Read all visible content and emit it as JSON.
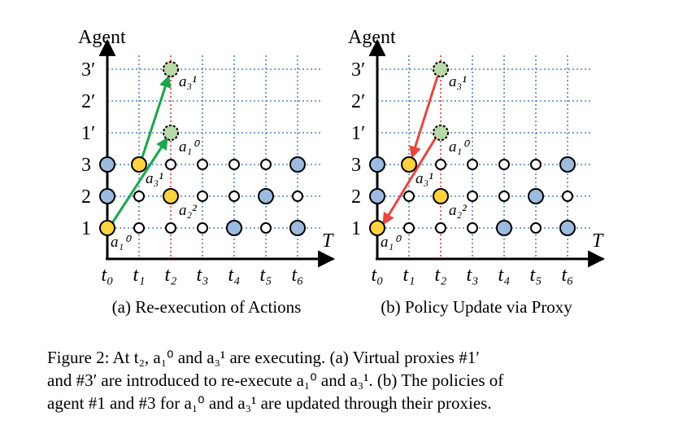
{
  "panels": [
    {
      "y_axis_label": "Agent",
      "x_axis_label": "T",
      "y_labels": [
        "3′",
        "2′",
        "1′",
        "3",
        "2",
        "1"
      ],
      "x_labels": [
        "t₀",
        "t₁",
        "t₂",
        "t₃",
        "t₄",
        "t₅",
        "t₆"
      ],
      "node_labels": [
        "a₃¹",
        "a₁⁰",
        "a₃¹",
        "a₂²",
        "a₁⁰"
      ],
      "subcaption": "(a) Re-execution of Actions"
    },
    {
      "y_axis_label": "Agent",
      "x_axis_label": "T",
      "y_labels": [
        "3′",
        "2′",
        "1′",
        "3",
        "2",
        "1"
      ],
      "x_labels": [
        "t₀",
        "t₁",
        "t₂",
        "t₃",
        "t₄",
        "t₅",
        "t₆"
      ],
      "node_labels": [
        "a₃¹",
        "a₁⁰",
        "a₃¹",
        "a₂²",
        "a₁⁰"
      ],
      "subcaption": "(b) Policy Update via Proxy"
    }
  ],
  "caption": [
    "Figure 2: At t₂, a₁⁰ and a₃¹ are executing. (a) Virtual proxies #1′",
    "and #3′ are introduced to re-execute a₁⁰ and a₃¹. (b) The policies of",
    "agent #1 and #3 for a₁⁰ and a₃¹ are updated through their proxies."
  ]
}
